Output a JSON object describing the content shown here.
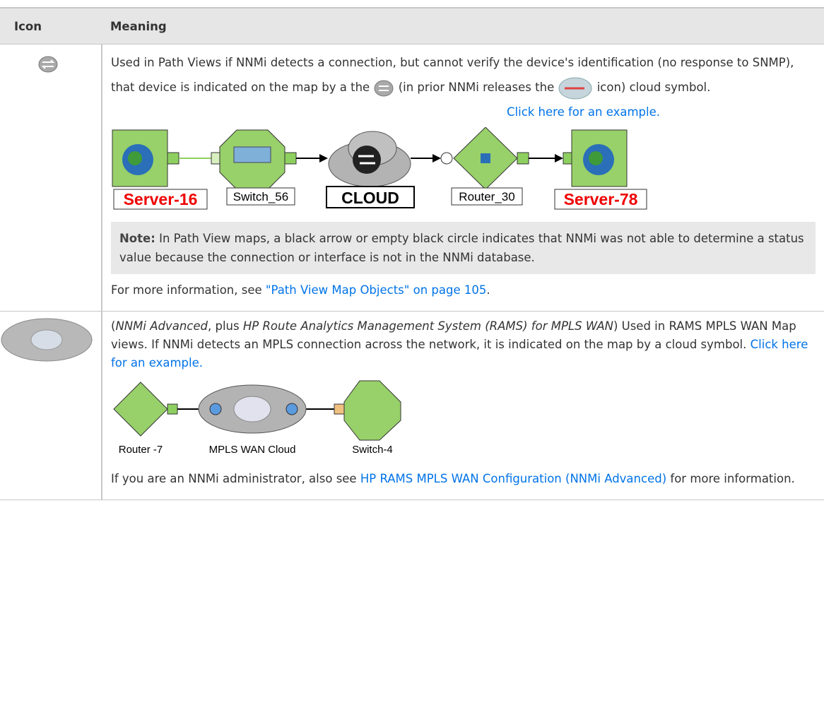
{
  "table": {
    "headers": [
      "Icon",
      "Meaning"
    ],
    "rows": [
      {
        "paragraph": [
          "Used in Path Views if NNMi detects a connection, but cannot verify the device's identification (no response to SNMP), that device is indicated on the map by a the",
          "(in prior NNMi releases the",
          "icon) cloud symbol."
        ],
        "example_link": "Click here for an example.",
        "diagram_labels": [
          "Server-16",
          "Switch_56",
          "CLOUD",
          "Router_30",
          "Server-78"
        ],
        "note_label": "Note:",
        "note_text": "In Path View maps, a black arrow or empty black circle indicates that NNMi was not able to determine a status value because the connection or interface is not in the NNMi database.",
        "more_info": [
          "For more information, see",
          "\"Path View Map Objects\" on page 105",
          "."
        ]
      },
      {
        "paragraph": [
          "(",
          "NNMi Advanced",
          ", plus",
          "HP Route Analytics Management System (RAMS) for MPLS WAN",
          ") Used in RAMS MPLS WAN Map views. If NNMi detects an MPLS connection across the network, it is indicated on the map by a cloud symbol.",
          "Click here for an example."
        ],
        "diagram_labels": [
          "Router -7",
          "MPLS WAN Cloud",
          "Switch-4"
        ],
        "more_info": [
          "If you are an NNMi administrator, also see",
          "HP RAMS MPLS WAN Configuration (NNMi Advanced)",
          "for more information."
        ]
      }
    ]
  }
}
